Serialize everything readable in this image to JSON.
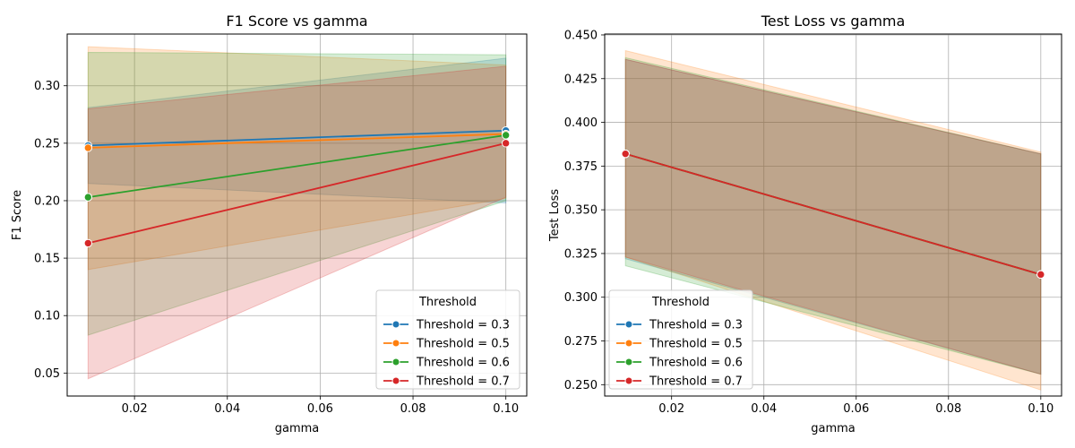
{
  "chart_data": [
    {
      "type": "line",
      "title": "F1 Score vs gamma",
      "xlabel": "gamma",
      "ylabel": "F1 Score",
      "xlim": [
        0.0055,
        0.1045
      ],
      "ylim": [
        0.03,
        0.345
      ],
      "xticks": [
        0.02,
        0.04,
        0.06,
        0.08,
        0.1
      ],
      "xtick_labels": [
        "0.02",
        "0.04",
        "0.06",
        "0.08",
        "0.10"
      ],
      "yticks": [
        0.05,
        0.1,
        0.15,
        0.2,
        0.25,
        0.3
      ],
      "ytick_labels": [
        "0.05",
        "0.10",
        "0.15",
        "0.20",
        "0.25",
        "0.30"
      ],
      "grid": true,
      "legend": {
        "title": "Threshold",
        "placement": "lower-right"
      },
      "x": [
        0.01,
        0.1
      ],
      "series": [
        {
          "name": "Threshold = 0.3",
          "color": "#1f77b4",
          "values": [
            0.248,
            0.261
          ],
          "band_lower": [
            0.215,
            0.198
          ],
          "band_upper": [
            0.281,
            0.324
          ]
        },
        {
          "name": "Threshold = 0.5",
          "color": "#ff7f0e",
          "values": [
            0.246,
            0.258
          ],
          "band_lower": [
            0.14,
            0.202
          ],
          "band_upper": [
            0.334,
            0.318
          ]
        },
        {
          "name": "Threshold = 0.6",
          "color": "#2ca02c",
          "values": [
            0.203,
            0.257
          ],
          "band_lower": [
            0.083,
            0.2
          ],
          "band_upper": [
            0.329,
            0.327
          ]
        },
        {
          "name": "Threshold = 0.7",
          "color": "#d62728",
          "values": [
            0.163,
            0.25
          ],
          "band_lower": [
            0.045,
            0.203
          ],
          "band_upper": [
            0.28,
            0.317
          ]
        }
      ]
    },
    {
      "type": "line",
      "title": "Test Loss vs gamma",
      "xlabel": "gamma",
      "ylabel": "Test Loss",
      "xlim": [
        0.0055,
        0.1045
      ],
      "ylim": [
        0.2435,
        0.4505
      ],
      "xticks": [
        0.02,
        0.04,
        0.06,
        0.08,
        0.1
      ],
      "xtick_labels": [
        "0.02",
        "0.04",
        "0.06",
        "0.08",
        "0.10"
      ],
      "yticks": [
        0.25,
        0.275,
        0.3,
        0.325,
        0.35,
        0.375,
        0.4,
        0.425,
        0.45
      ],
      "ytick_labels": [
        "0.250",
        "0.275",
        "0.300",
        "0.325",
        "0.350",
        "0.375",
        "0.400",
        "0.425",
        "0.450"
      ],
      "grid": true,
      "legend": {
        "title": "Threshold",
        "placement": "lower-left"
      },
      "x": [
        0.01,
        0.1
      ],
      "series": [
        {
          "name": "Threshold = 0.3",
          "color": "#1f77b4",
          "values": [
            0.382,
            0.313
          ],
          "band_lower": [
            0.322,
            0.256
          ],
          "band_upper": [
            0.436,
            0.382
          ]
        },
        {
          "name": "Threshold = 0.5",
          "color": "#ff7f0e",
          "values": [
            0.382,
            0.313
          ],
          "band_lower": [
            0.323,
            0.247
          ],
          "band_upper": [
            0.441,
            0.383
          ]
        },
        {
          "name": "Threshold = 0.6",
          "color": "#2ca02c",
          "values": [
            0.382,
            0.313
          ],
          "band_lower": [
            0.318,
            0.256
          ],
          "band_upper": [
            0.437,
            0.382
          ]
        },
        {
          "name": "Threshold = 0.7",
          "color": "#d62728",
          "values": [
            0.382,
            0.313
          ],
          "band_lower": [
            0.323,
            0.256
          ],
          "band_upper": [
            0.436,
            0.382
          ]
        }
      ]
    }
  ]
}
